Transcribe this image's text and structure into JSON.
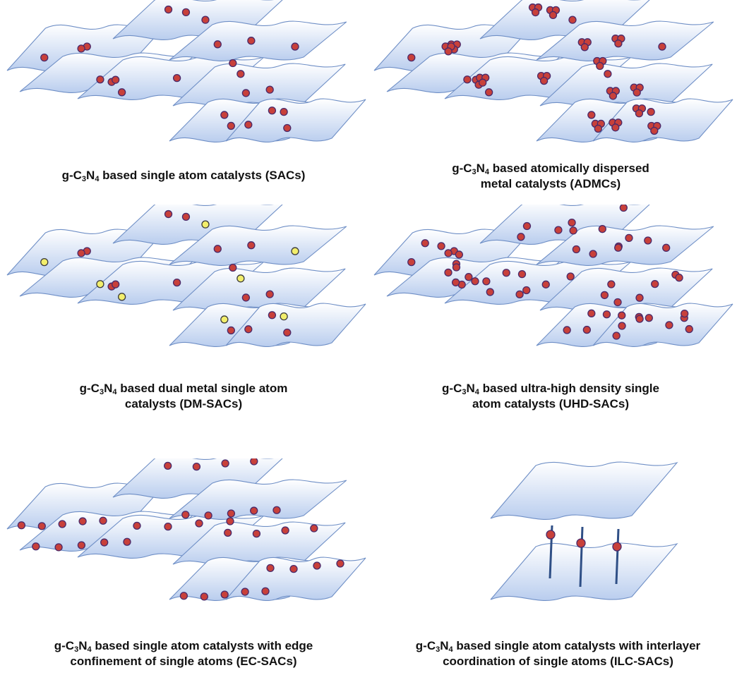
{
  "colors": {
    "sheet_top": "#ffffff",
    "sheet_bottom": "#b9cdee",
    "sheet_edge": "#6f8fc6",
    "atom_red": "#c8403a",
    "atom_red_edge": "#4a2a6a",
    "atom_yellow": "#f2ee6c",
    "atom_yellow_edge": "#3b3b3b",
    "pillar": "#2f4f86"
  },
  "panels": [
    {
      "id": "sacs",
      "caption": {
        "pre": "g-C",
        "sub1": "3",
        "mid": "N",
        "sub2": "4",
        "line1_rest": " based single atom catalysts (SACs)",
        "line2": ""
      }
    },
    {
      "id": "admcs",
      "caption": {
        "pre": "g-C",
        "sub1": "3",
        "mid": "N",
        "sub2": "4",
        "line1_rest": " based atomically dispersed",
        "line2": "metal catalysts (ADMCs)"
      }
    },
    {
      "id": "dm-sacs",
      "caption": {
        "pre": "g-C",
        "sub1": "3",
        "mid": "N",
        "sub2": "4",
        "line1_rest": " based dual metal single atom",
        "line2": "catalysts (DM-SACs)"
      }
    },
    {
      "id": "uhd-sacs",
      "caption": {
        "pre": "g-C",
        "sub1": "3",
        "mid": "N",
        "sub2": "4",
        "line1_rest": " based ultra-high density single",
        "line2": "atom catalysts (UHD-SACs)"
      }
    },
    {
      "id": "ec-sacs",
      "caption": {
        "pre": "g-C",
        "sub1": "3",
        "mid": "N",
        "sub2": "4",
        "line1_rest": " based single atom catalysts with edge",
        "line2": "confinement of single atoms (EC-SACs)"
      }
    },
    {
      "id": "ilc-sacs",
      "caption": {
        "pre": "g-C",
        "sub1": "3",
        "mid": "N",
        "sub2": "4",
        "line1_rest": " based single atom catalysts with interlayer",
        "line2": "coordination of single atoms (ILC-SACs)"
      }
    }
  ]
}
